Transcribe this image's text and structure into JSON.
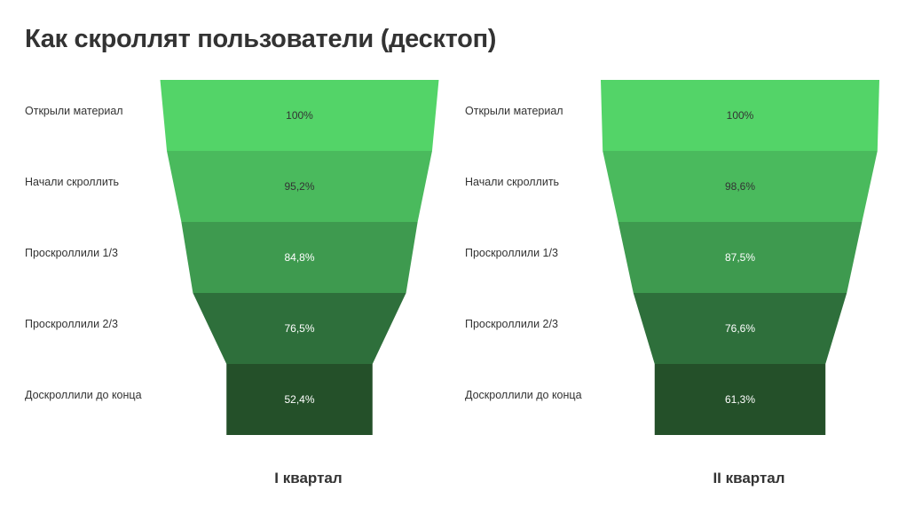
{
  "page": {
    "title": "Как скроллят пользователи (десктоп)"
  },
  "colors": {
    "stage_fills": [
      "#53d468",
      "#4aba5d",
      "#3e9a4f",
      "#2e6f3b",
      "#245029"
    ],
    "light_text": "#333333",
    "dark_text": "#ffffff"
  },
  "chart_data": [
    {
      "type": "funnel",
      "title": "I квартал",
      "categories": [
        "Открыли материал",
        "Начали скроллить",
        "Проскроллили 1/3",
        "Проскроллили 2/3",
        "Доскроллили до конца"
      ],
      "values": [
        100,
        95.2,
        84.8,
        76.5,
        52.4
      ],
      "value_labels": [
        "100%",
        "95,2%",
        "84,8%",
        "76,5%",
        "52,4%"
      ],
      "unit": "%"
    },
    {
      "type": "funnel",
      "title": "II квартал",
      "categories": [
        "Открыли материал",
        "Начали скроллить",
        "Проскроллили 1/3",
        "Проскроллили 2/3",
        "Доскроллили до конца"
      ],
      "values": [
        100,
        98.6,
        87.5,
        76.6,
        61.3
      ],
      "value_labels": [
        "100%",
        "98,6%",
        "87,5%",
        "76,6%",
        "61,3%"
      ],
      "unit": "%"
    }
  ]
}
